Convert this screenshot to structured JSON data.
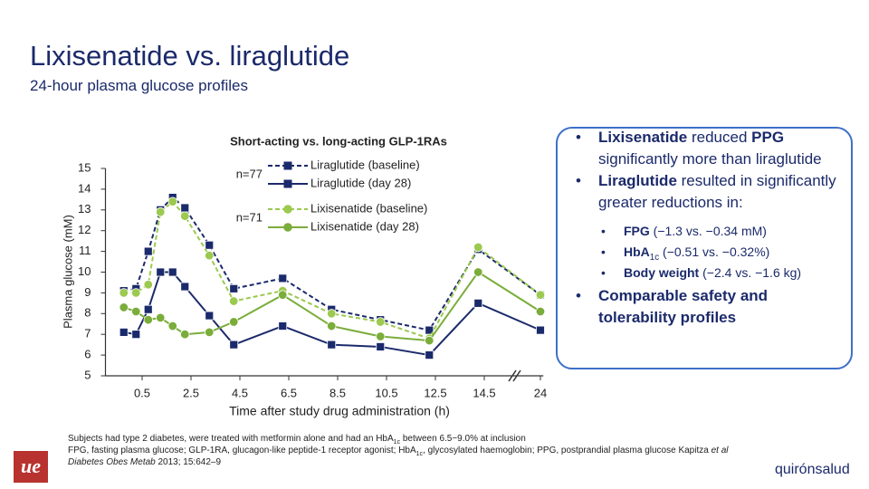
{
  "slide": {
    "title": "Lixisenatide vs. liraglutide",
    "subtitle": "24-hour plasma glucose profiles"
  },
  "chart_data": {
    "type": "line",
    "title": "Short-acting vs. long-acting GLP-1RAs",
    "x_label": "Time after study drug administration (h)",
    "y_label": "Plasma glucose (mM)",
    "x": [
      -0.25,
      0.25,
      0.75,
      1.25,
      1.75,
      2.25,
      3.25,
      4.25,
      6.25,
      8.25,
      10.25,
      12.25,
      14.25,
      24
    ],
    "xlim": [
      -1,
      24.5
    ],
    "xticks": [
      0.5,
      2.5,
      4.5,
      6.5,
      8.5,
      10.5,
      12.5,
      14.5,
      24
    ],
    "ylim": [
      5,
      15
    ],
    "yticks": [
      5,
      6,
      7,
      8,
      9,
      10,
      11,
      12,
      13,
      14,
      15
    ],
    "annotations": [
      "n=77",
      "n=71"
    ],
    "series": [
      {
        "name": "Liraglutide (baseline)",
        "color": "#1b2a6b",
        "dash": true,
        "marker": "square",
        "values": [
          9.1,
          9.2,
          11.0,
          13.0,
          13.6,
          13.1,
          11.3,
          9.2,
          9.7,
          8.2,
          7.7,
          7.2,
          11.1,
          8.9
        ]
      },
      {
        "name": "Liraglutide (day 28)",
        "color": "#1b2a6b",
        "dash": false,
        "marker": "square",
        "values": [
          7.1,
          7.0,
          8.2,
          10.0,
          10.0,
          9.3,
          7.9,
          6.5,
          7.4,
          6.5,
          6.4,
          6.0,
          8.5,
          7.2
        ]
      },
      {
        "name": "Lixisenatide (baseline)",
        "color": "#9cc94f",
        "dash": true,
        "marker": "circle",
        "values": [
          9.0,
          9.0,
          9.4,
          12.9,
          13.4,
          12.7,
          10.8,
          8.6,
          9.1,
          8.0,
          7.6,
          6.8,
          11.2,
          8.9
        ]
      },
      {
        "name": "Lixisenatide (day 28)",
        "color": "#7aad3a",
        "dash": false,
        "marker": "circle",
        "values": [
          8.3,
          8.1,
          7.7,
          7.8,
          7.4,
          7.0,
          7.1,
          7.6,
          8.9,
          7.4,
          6.9,
          6.7,
          10.0,
          8.1
        ]
      }
    ]
  },
  "bullets": [
    [
      {
        "b": "Lixisenatide"
      },
      " reduced ",
      {
        "b": "PPG"
      },
      " significantly more than liraglutide"
    ],
    [
      {
        "b": "Liraglutide"
      },
      " resulted in significantly greater reductions in:"
    ]
  ],
  "sub_bullets": [
    [
      {
        "b": "FPG"
      },
      " (−1.3 vs. −0.34 mM)"
    ],
    [
      {
        "b": "HbA"
      },
      {
        "sub": "1c"
      },
      " (−0.51 vs. −0.32%)"
    ],
    [
      {
        "b": "Body weight"
      },
      " (−2.4 vs. −1.6 kg)"
    ]
  ],
  "last_bullet": [
    {
      "b": "Comparable safety and tolerability profiles"
    }
  ],
  "footnote": [
    [
      "Subjects had type 2 diabetes, were treated with metformin alone and had an HbA",
      {
        "sub": "1c"
      },
      " between 6.5−9.0% at inclusion"
    ],
    [
      "FPG, fasting plasma glucose; GLP-1RA, glucagon-like peptide-1 receptor agonist; HbA",
      {
        "sub": "1c"
      },
      ", glycosylated haemoglobin; PPG, postprandial plasma glucose Kapitza ",
      {
        "i": "et al Diabetes Obes Metab"
      },
      " 2013; 15:642–9"
    ]
  ],
  "footer": {
    "logo_left": "ue",
    "logo_right": "quirónsalud"
  }
}
